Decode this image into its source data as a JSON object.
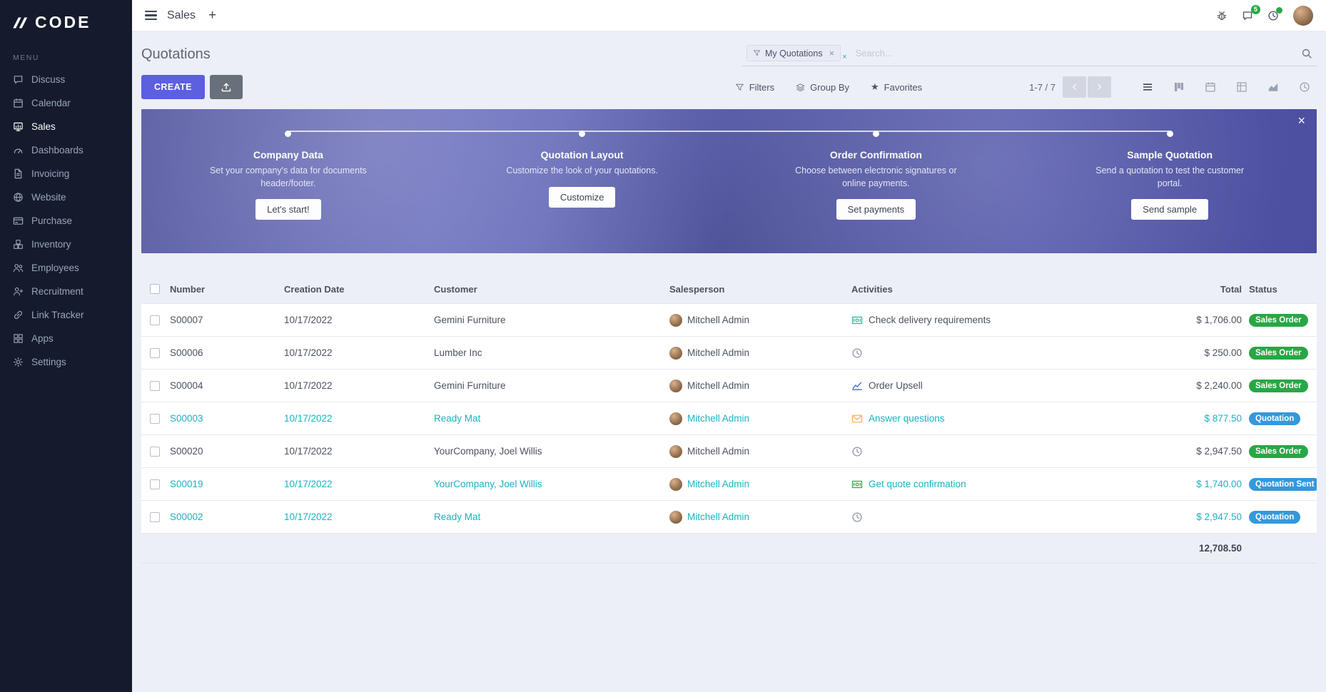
{
  "brand": {
    "logo": "CODE",
    "menu_label": "MENU"
  },
  "sidebar": {
    "items": [
      {
        "label": "Discuss",
        "icon": "discuss-icon",
        "active": false
      },
      {
        "label": "Calendar",
        "icon": "calendar-icon",
        "active": false
      },
      {
        "label": "Sales",
        "icon": "sales-icon",
        "active": true
      },
      {
        "label": "Dashboards",
        "icon": "dashboards-icon",
        "active": false
      },
      {
        "label": "Invoicing",
        "icon": "invoicing-icon",
        "active": false
      },
      {
        "label": "Website",
        "icon": "website-icon",
        "active": false
      },
      {
        "label": "Purchase",
        "icon": "purchase-icon",
        "active": false
      },
      {
        "label": "Inventory",
        "icon": "inventory-icon",
        "active": false
      },
      {
        "label": "Employees",
        "icon": "employees-icon",
        "active": false
      },
      {
        "label": "Recruitment",
        "icon": "recruitment-icon",
        "active": false
      },
      {
        "label": "Link Tracker",
        "icon": "link-tracker-icon",
        "active": false
      },
      {
        "label": "Apps",
        "icon": "apps-icon",
        "active": false
      },
      {
        "label": "Settings",
        "icon": "settings-icon",
        "active": false
      }
    ]
  },
  "topbar": {
    "app_title": "Sales",
    "plus_label": "+",
    "messages_badge": "5"
  },
  "control": {
    "title": "Quotations",
    "search": {
      "facet": "My Quotations",
      "placeholder": "Search...",
      "remove_icon": "×"
    },
    "create_label": "CREATE",
    "filters_label": "Filters",
    "group_by_label": "Group By",
    "favorites_label": "Favorites",
    "favorites_star": "★",
    "pager": "1-7 / 7",
    "pager_prev": "‹",
    "pager_next": "›",
    "view_switcher": [
      {
        "icon": "list-view-icon",
        "active": true
      },
      {
        "icon": "kanban-view-icon",
        "active": false
      },
      {
        "icon": "calendar-view-icon",
        "active": false
      },
      {
        "icon": "pivot-view-icon",
        "active": false
      },
      {
        "icon": "graph-view-icon",
        "active": false
      },
      {
        "icon": "activity-view-icon",
        "active": false
      }
    ]
  },
  "banner": {
    "close_icon": "×",
    "steps": [
      {
        "title": "Company Data",
        "desc": "Set your company's data for documents header/footer.",
        "button": "Let's start!"
      },
      {
        "title": "Quotation Layout",
        "desc": "Customize the look of your quotations.",
        "button": "Customize"
      },
      {
        "title": "Order Confirmation",
        "desc": "Choose between electronic signatures or online payments.",
        "button": "Set payments"
      },
      {
        "title": "Sample Quotation",
        "desc": "Send a quotation to test the customer portal.",
        "button": "Send sample"
      }
    ]
  },
  "colors": {
    "accent": "#5b5fe0",
    "teal_row": "#18b2c3",
    "sales_order_badge": "#28a745",
    "quotation_badge": "#3498db"
  },
  "table": {
    "columns": [
      "Number",
      "Creation Date",
      "Customer",
      "Salesperson",
      "Activities",
      "Total",
      "Status"
    ],
    "rows": [
      {
        "number": "S00007",
        "date": "10/17/2022",
        "customer": "Gemini Furniture",
        "salesperson": "Mitchell Admin",
        "activity": "Check delivery requirements",
        "activity_icon": "money-list-icon",
        "activity_color": "#21b799",
        "total": "$ 1,706.00",
        "status": "Sales Order",
        "status_color": "#28a745",
        "highlight": false
      },
      {
        "number": "S00006",
        "date": "10/17/2022",
        "customer": "Lumber Inc",
        "salesperson": "Mitchell Admin",
        "activity": "",
        "activity_icon": "clock-icon",
        "activity_color": "#8f98a9",
        "total": "$ 250.00",
        "status": "Sales Order",
        "status_color": "#28a745",
        "highlight": false
      },
      {
        "number": "S00004",
        "date": "10/17/2022",
        "customer": "Gemini Furniture",
        "salesperson": "Mitchell Admin",
        "activity": "Order Upsell",
        "activity_icon": "chart-line-icon",
        "activity_color": "#4472c4",
        "total": "$ 2,240.00",
        "status": "Sales Order",
        "status_color": "#28a745",
        "highlight": false
      },
      {
        "number": "S00003",
        "date": "10/17/2022",
        "customer": "Ready Mat",
        "salesperson": "Mitchell Admin",
        "activity": "Answer questions",
        "activity_icon": "envelope-icon",
        "activity_color": "#f0ad4e",
        "total": "$ 877.50",
        "status": "Quotation",
        "status_color": "#3498db",
        "highlight": true
      },
      {
        "number": "S00020",
        "date": "10/17/2022",
        "customer": "YourCompany, Joel Willis",
        "salesperson": "Mitchell Admin",
        "activity": "",
        "activity_icon": "clock-icon",
        "activity_color": "#8f98a9",
        "total": "$ 2,947.50",
        "status": "Sales Order",
        "status_color": "#28a745",
        "highlight": false
      },
      {
        "number": "S00019",
        "date": "10/17/2022",
        "customer": "YourCompany, Joel Willis",
        "salesperson": "Mitchell Admin",
        "activity": "Get quote confirmation",
        "activity_icon": "money-list-icon",
        "activity_color": "#28a745",
        "total": "$ 1,740.00",
        "status": "Quotation Sent",
        "status_color": "#3498db",
        "highlight": true
      },
      {
        "number": "S00002",
        "date": "10/17/2022",
        "customer": "Ready Mat",
        "salesperson": "Mitchell Admin",
        "activity": "",
        "activity_icon": "clock-icon",
        "activity_color": "#8f98a9",
        "total": "$ 2,947.50",
        "status": "Quotation",
        "status_color": "#3498db",
        "highlight": true
      }
    ],
    "total_sum": "12,708.50"
  }
}
